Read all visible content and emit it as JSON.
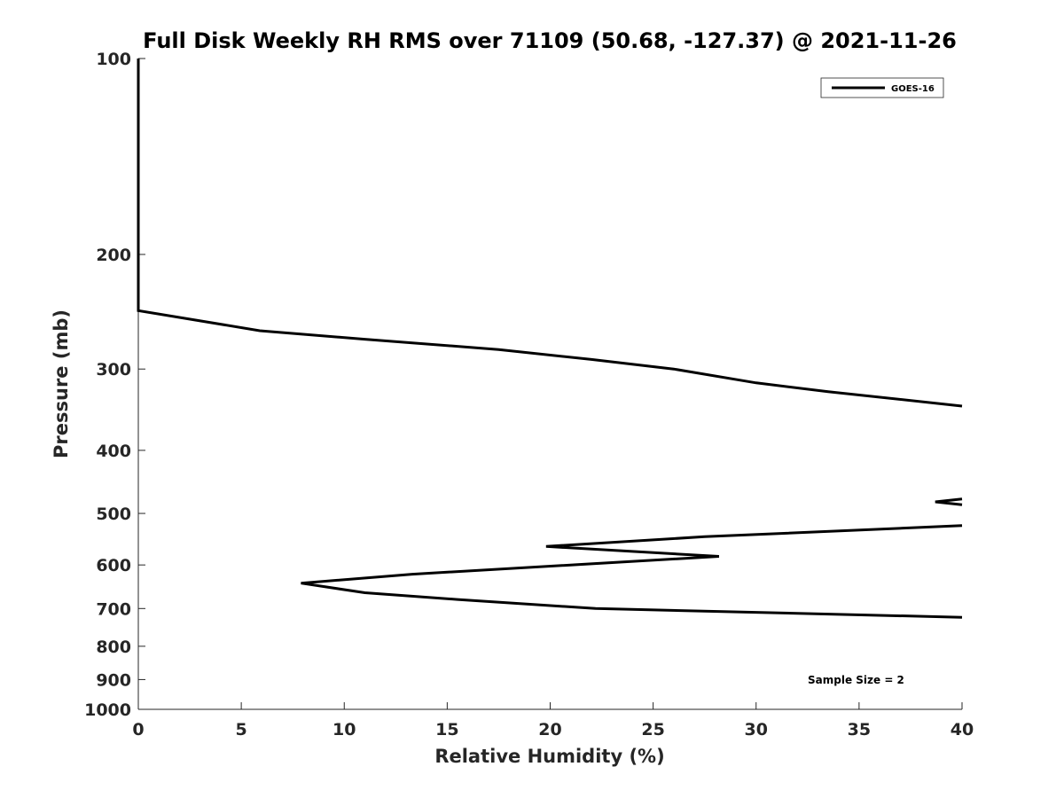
{
  "chart_data": {
    "type": "line",
    "title": "Full Disk Weekly RH RMS over 71109 (50.68, -127.37) @ 2021-11-26",
    "xlabel": "Relative Humidity (%)",
    "ylabel": "Pressure (mb)",
    "xlim": [
      0,
      40
    ],
    "ylim": [
      100,
      1000
    ],
    "yscale": "log",
    "ydirection": "reverse",
    "grid": false,
    "legend_position": "top-right",
    "x_ticks": [
      0,
      5,
      10,
      15,
      20,
      25,
      30,
      35,
      40
    ],
    "y_ticks": [
      100,
      200,
      300,
      400,
      500,
      600,
      700,
      800,
      900,
      1000
    ],
    "series": [
      {
        "name": "GOES-16",
        "color": "#000000",
        "segments": [
          [
            {
              "rh": 0.0,
              "p": 100
            },
            {
              "rh": 0.0,
              "p": 200
            },
            {
              "rh": 0.0,
              "p": 244
            },
            {
              "rh": 5.9,
              "p": 262
            },
            {
              "rh": 11.0,
              "p": 270
            },
            {
              "rh": 17.5,
              "p": 280
            },
            {
              "rh": 22.0,
              "p": 290
            },
            {
              "rh": 26.0,
              "p": 300
            },
            {
              "rh": 30.0,
              "p": 315
            },
            {
              "rh": 33.5,
              "p": 325
            },
            {
              "rh": 40.0,
              "p": 342
            }
          ],
          [
            {
              "rh": 40.0,
              "p": 475
            },
            {
              "rh": 38.7,
              "p": 480
            },
            {
              "rh": 40.0,
              "p": 485
            }
          ],
          [
            {
              "rh": 40.0,
              "p": 522
            },
            {
              "rh": 27.5,
              "p": 543
            },
            {
              "rh": 19.8,
              "p": 562
            },
            {
              "rh": 28.2,
              "p": 582
            },
            {
              "rh": 13.3,
              "p": 620
            },
            {
              "rh": 7.9,
              "p": 640
            },
            {
              "rh": 11.0,
              "p": 662
            },
            {
              "rh": 15.5,
              "p": 678
            },
            {
              "rh": 22.2,
              "p": 700
            },
            {
              "rh": 40.0,
              "p": 722
            }
          ]
        ]
      }
    ],
    "annotations": {
      "sample_size": "Sample Size = 2"
    }
  }
}
